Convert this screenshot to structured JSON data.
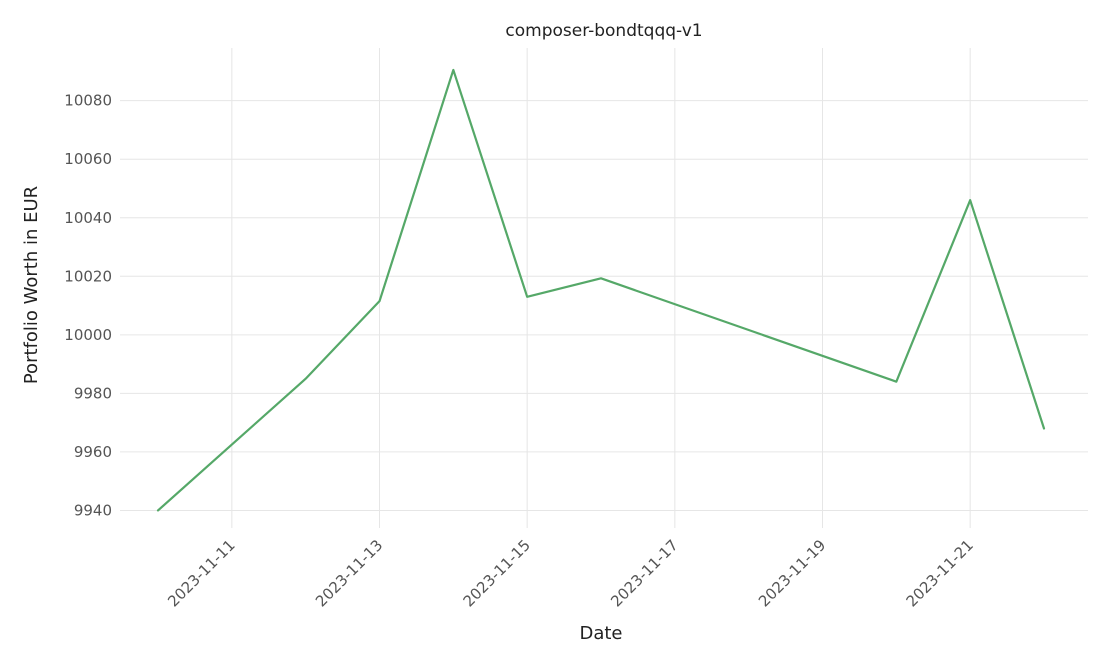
{
  "chart_data": {
    "type": "line",
    "title": "composer-bondtqqq-v1",
    "xlabel": "Date",
    "ylabel": "Portfolio Worth in EUR",
    "x_ticks": [
      "2023-11-11",
      "2023-11-13",
      "2023-11-15",
      "2023-11-17",
      "2023-11-19",
      "2023-11-21"
    ],
    "y_ticks": [
      9940,
      9960,
      9980,
      10000,
      10020,
      10040,
      10060,
      10080
    ],
    "xlim": [
      "2023-11-10",
      "2023-11-22"
    ],
    "ylim": [
      9934,
      10098
    ],
    "grid": true,
    "series": [
      {
        "color": "#55a868",
        "x": [
          "2023-11-10",
          "2023-11-11",
          "2023-11-12",
          "2023-11-13",
          "2023-11-14",
          "2023-11-15",
          "2023-11-16",
          "2023-11-20",
          "2023-11-21",
          "2023-11-22"
        ],
        "y": [
          9940,
          9962.5,
          9985,
          10011.5,
          10090.5,
          10013,
          10019.3,
          9984,
          10046,
          9968
        ]
      }
    ]
  }
}
